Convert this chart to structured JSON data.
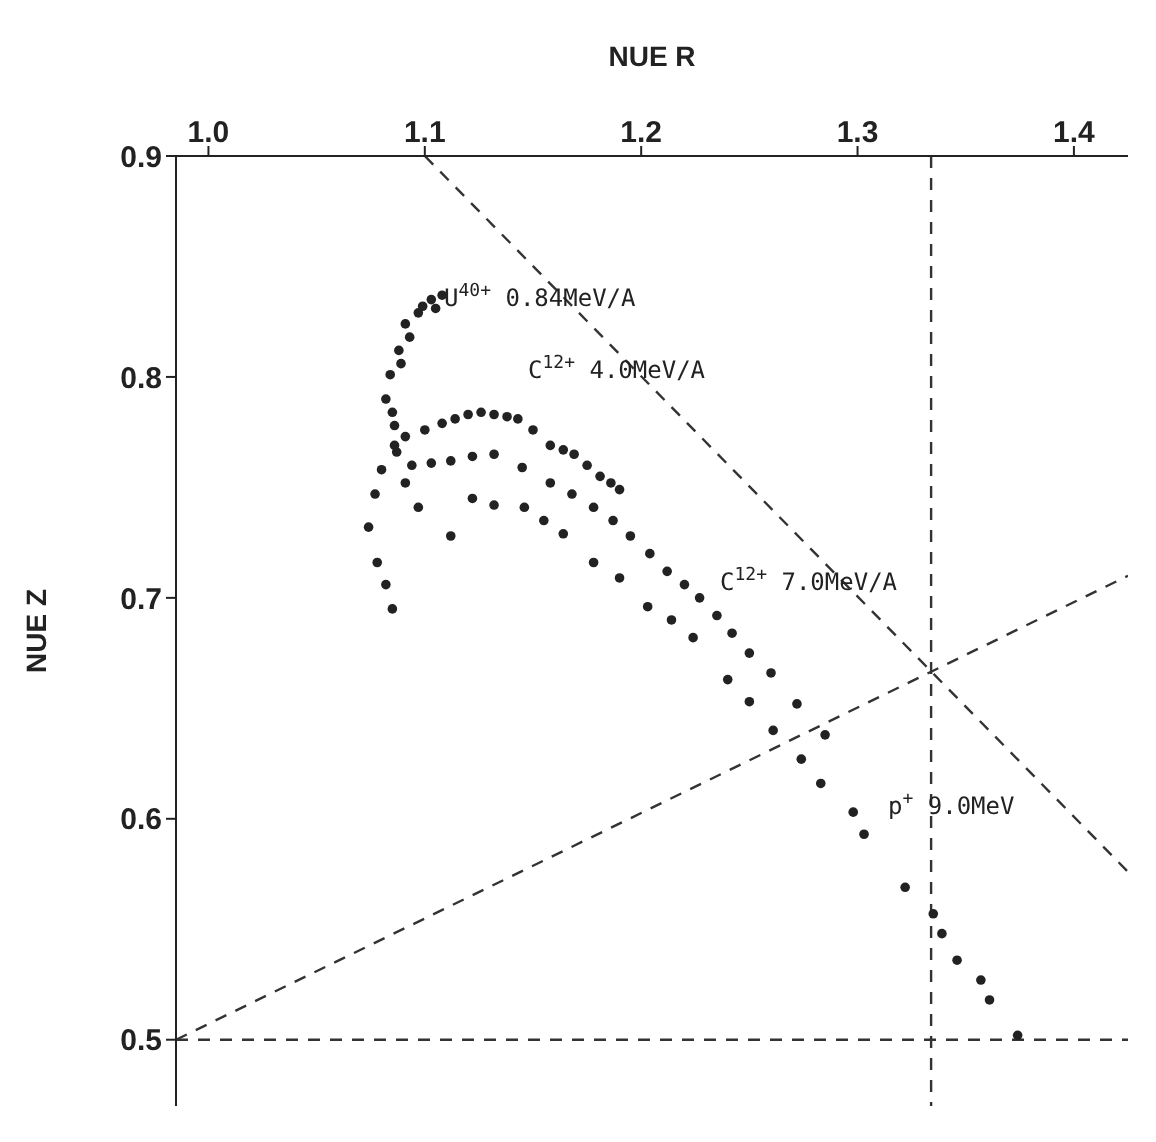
{
  "chart_data": {
    "type": "scatter",
    "xlabel": "NUE R",
    "ylabel": "NUE Z",
    "xlim": [
      0.985,
      1.425
    ],
    "ylim": [
      0.47,
      0.9
    ],
    "xticks": [
      {
        "value": 1.0,
        "label": "1.0"
      },
      {
        "value": 1.1,
        "label": "1.1"
      },
      {
        "value": 1.2,
        "label": "1.2"
      },
      {
        "value": 1.3,
        "label": "1.3"
      },
      {
        "value": 1.4,
        "label": "1.4"
      }
    ],
    "yticks": [
      {
        "value": 0.5,
        "label": "0.5"
      },
      {
        "value": 0.6,
        "label": "0.6"
      },
      {
        "value": 0.7,
        "label": "0.7"
      },
      {
        "value": 0.8,
        "label": "0.8"
      },
      {
        "value": 0.9,
        "label": "0.9"
      }
    ],
    "grid": false,
    "marker": "circle",
    "series": [
      {
        "color": "#222222",
        "x": [
          1.082,
          1.084,
          1.086,
          1.087,
          1.088,
          1.091,
          1.097,
          1.103,
          1.108,
          1.085,
          1.089,
          1.093,
          1.099,
          1.105
        ],
        "values": [
          0.79,
          0.801,
          0.778,
          0.766,
          0.812,
          0.824,
          0.829,
          0.835,
          0.837,
          0.784,
          0.806,
          0.818,
          0.832,
          0.831
        ]
      },
      {
        "color": "#222222",
        "x": [
          1.091,
          1.1,
          1.108,
          1.114,
          1.12,
          1.126,
          1.132,
          1.138,
          1.143,
          1.15,
          1.158,
          1.164,
          1.169,
          1.175,
          1.181,
          1.186,
          1.19
        ],
        "values": [
          0.773,
          0.776,
          0.779,
          0.781,
          0.783,
          0.784,
          0.783,
          0.782,
          0.781,
          0.776,
          0.769,
          0.767,
          0.765,
          0.76,
          0.755,
          0.752,
          0.749
        ]
      },
      {
        "color": "#222222",
        "x": [
          1.094,
          1.103,
          1.112,
          1.122,
          1.132,
          1.145,
          1.158,
          1.168,
          1.178,
          1.187,
          1.195,
          1.204,
          1.212,
          1.22,
          1.227,
          1.235,
          1.242,
          1.25,
          1.26,
          1.272,
          1.285
        ],
        "values": [
          0.76,
          0.761,
          0.762,
          0.764,
          0.765,
          0.759,
          0.752,
          0.747,
          0.741,
          0.735,
          0.728,
          0.72,
          0.712,
          0.706,
          0.7,
          0.692,
          0.684,
          0.675,
          0.666,
          0.652,
          0.638
        ]
      },
      {
        "color": "#222222",
        "x": [
          1.074,
          1.077,
          1.078,
          1.08,
          1.082,
          1.085,
          1.086,
          1.091,
          1.097,
          1.112,
          1.122,
          1.132,
          1.146,
          1.155,
          1.164,
          1.178,
          1.19,
          1.203,
          1.214,
          1.224,
          1.24,
          1.25,
          1.261,
          1.274,
          1.283,
          1.298,
          1.303,
          1.322,
          1.335,
          1.339,
          1.346,
          1.357,
          1.361,
          1.374
        ],
        "values": [
          0.732,
          0.747,
          0.716,
          0.758,
          0.706,
          0.695,
          0.769,
          0.752,
          0.741,
          0.728,
          0.745,
          0.742,
          0.741,
          0.735,
          0.729,
          0.716,
          0.709,
          0.696,
          0.69,
          0.682,
          0.663,
          0.653,
          0.64,
          0.627,
          0.616,
          0.603,
          0.593,
          0.569,
          0.557,
          0.548,
          0.536,
          0.527,
          0.518,
          0.502
        ]
      },
      {
        "type": "line",
        "color": "#333333",
        "line_style": "dashed",
        "marker": "none",
        "x": [
          0.985,
          1.425
        ],
        "values": [
          0.5,
          0.71
        ]
      },
      {
        "type": "line",
        "color": "#333333",
        "line_style": "dashed",
        "marker": "none",
        "x": [
          1.1,
          1.425
        ],
        "values": [
          0.9,
          0.576
        ]
      }
    ],
    "ref_lines": [
      {
        "axis": "x",
        "value": 1.334,
        "color": "#333333",
        "line_style": "dashed"
      },
      {
        "axis": "y",
        "value": 0.5,
        "color": "#333333",
        "line_style": "dashed"
      }
    ],
    "annotations": [
      "U$^{40+}$ 0.84MeV/A",
      "C$^{12+}$ 4.0MeV/A",
      "C$^{12+}$ 7.0MeV/A",
      "p$^{+}$ 9.0MeV"
    ]
  }
}
